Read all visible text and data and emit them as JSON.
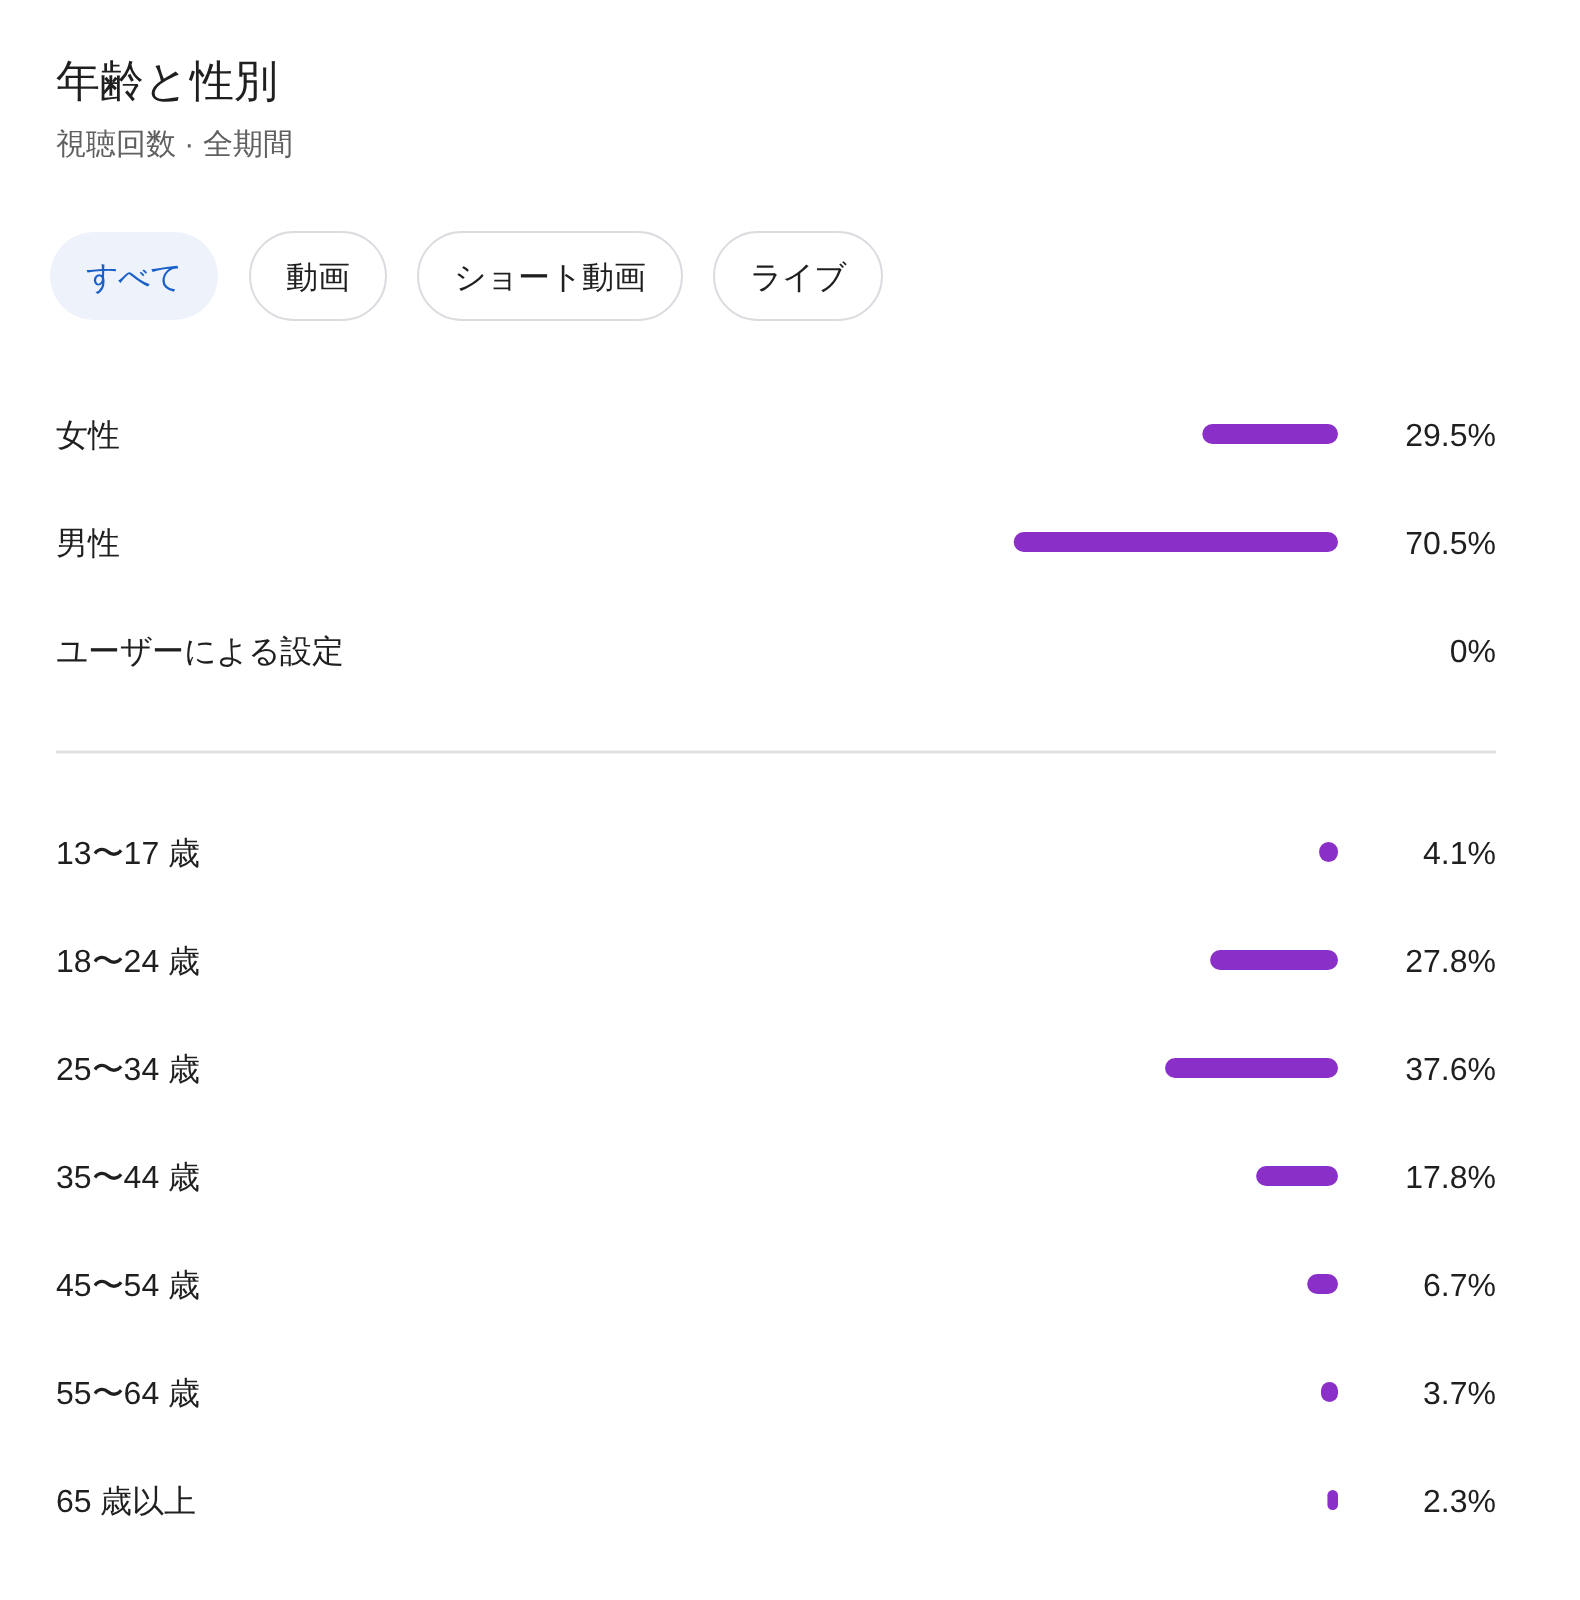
{
  "chart_data": [
    {
      "type": "bar",
      "orientation": "horizontal",
      "title": "年齢と性別",
      "subtitle": "視聴回数 · 全期間",
      "annotations": [
        "すべて",
        "動画",
        "ショート動画",
        "ライブ"
      ],
      "categories": [
        "女性",
        "男性",
        "ユーザーによる設定"
      ],
      "values": [
        29.5,
        70.5,
        0
      ],
      "value_labels": [
        "29.5%",
        "70.5%",
        "0%"
      ],
      "color": "#8b2fc9"
    },
    {
      "type": "bar",
      "orientation": "horizontal",
      "categories": [
        "13〜17 歳",
        "18〜24 歳",
        "25〜34 歳",
        "35〜44 歳",
        "45〜54 歳",
        "55〜64 歳",
        "65 歳以上"
      ],
      "values": [
        4.1,
        27.8,
        37.6,
        17.8,
        6.7,
        3.7,
        2.3
      ],
      "value_labels": [
        "4.1%",
        "27.8%",
        "37.6%",
        "17.8%",
        "6.7%",
        "3.7%",
        "2.3%"
      ],
      "color": "#8b2fc9"
    }
  ]
}
